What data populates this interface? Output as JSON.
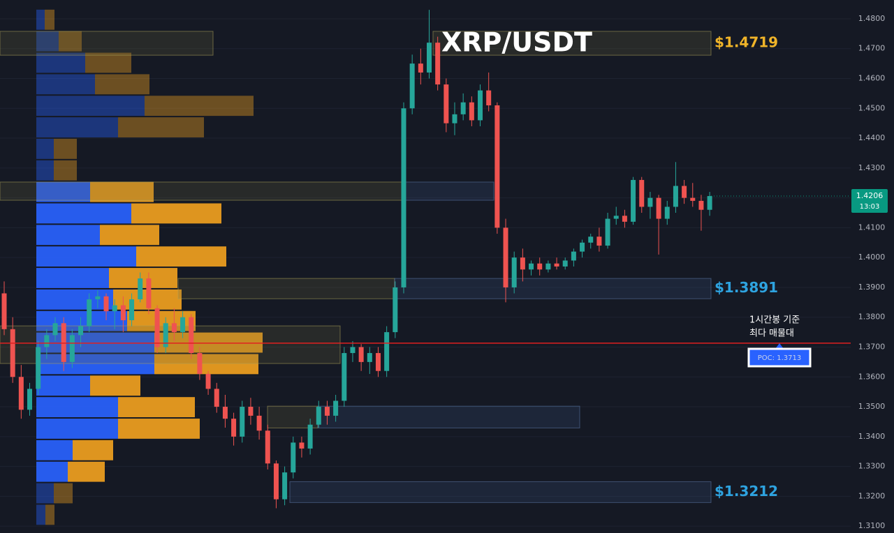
{
  "chart_data": {
    "type": "candlestick",
    "title": "XRP/USDT",
    "ylim": [
      1.3077,
      1.4863
    ],
    "yticks": [
      {
        "value": 1.48,
        "label": "1.4800"
      },
      {
        "value": 1.47,
        "label": "1.4700"
      },
      {
        "value": 1.46,
        "label": "1.4600"
      },
      {
        "value": 1.45,
        "label": "1.4500"
      },
      {
        "value": 1.44,
        "label": "1.4400"
      },
      {
        "value": 1.43,
        "label": "1.4300"
      },
      {
        "value": 1.42,
        "label": "1.4200"
      },
      {
        "value": 1.41,
        "label": "1.4100"
      },
      {
        "value": 1.4,
        "label": "1.4000"
      },
      {
        "value": 1.39,
        "label": "1.3900"
      },
      {
        "value": 1.38,
        "label": "1.3800"
      },
      {
        "value": 1.37,
        "label": "1.3700"
      },
      {
        "value": 1.36,
        "label": "1.3600"
      },
      {
        "value": 1.35,
        "label": "1.3500"
      },
      {
        "value": 1.34,
        "label": "1.3400"
      },
      {
        "value": 1.33,
        "label": "1.3300"
      },
      {
        "value": 1.32,
        "label": "1.3200"
      },
      {
        "value": 1.31,
        "label": "1.3100"
      }
    ],
    "grid": true,
    "up_color": "#26a69a",
    "down_color": "#ef5350",
    "candles": [
      [
        1.388,
        1.392,
        1.374,
        1.376
      ],
      [
        1.376,
        1.38,
        1.358,
        1.36
      ],
      [
        1.36,
        1.364,
        1.346,
        1.349
      ],
      [
        1.349,
        1.358,
        1.347,
        1.356
      ],
      [
        1.356,
        1.372,
        1.354,
        1.37
      ],
      [
        1.37,
        1.376,
        1.366,
        1.374
      ],
      [
        1.374,
        1.38,
        1.372,
        1.378
      ],
      [
        1.378,
        1.38,
        1.362,
        1.365
      ],
      [
        1.365,
        1.376,
        1.363,
        1.374
      ],
      [
        1.374,
        1.38,
        1.37,
        1.377
      ],
      [
        1.377,
        1.388,
        1.375,
        1.386
      ],
      [
        1.386,
        1.389,
        1.383,
        1.387
      ],
      [
        1.387,
        1.388,
        1.379,
        1.382
      ],
      [
        1.382,
        1.386,
        1.376,
        1.384
      ],
      [
        1.384,
        1.387,
        1.375,
        1.379
      ],
      [
        1.379,
        1.388,
        1.377,
        1.386
      ],
      [
        1.386,
        1.395,
        1.385,
        1.393
      ],
      [
        1.393,
        1.395,
        1.381,
        1.383
      ],
      [
        1.383,
        1.384,
        1.368,
        1.37
      ],
      [
        1.37,
        1.38,
        1.368,
        1.378
      ],
      [
        1.378,
        1.383,
        1.372,
        1.375
      ],
      [
        1.375,
        1.382,
        1.373,
        1.38
      ],
      [
        1.38,
        1.381,
        1.366,
        1.368
      ],
      [
        1.368,
        1.37,
        1.359,
        1.361
      ],
      [
        1.361,
        1.362,
        1.354,
        1.356
      ],
      [
        1.356,
        1.358,
        1.348,
        1.35
      ],
      [
        1.35,
        1.354,
        1.343,
        1.346
      ],
      [
        1.346,
        1.348,
        1.337,
        1.34
      ],
      [
        1.34,
        1.352,
        1.338,
        1.35
      ],
      [
        1.35,
        1.353,
        1.344,
        1.347
      ],
      [
        1.347,
        1.35,
        1.339,
        1.342
      ],
      [
        1.342,
        1.344,
        1.329,
        1.331
      ],
      [
        1.331,
        1.332,
        1.316,
        1.319
      ],
      [
        1.319,
        1.33,
        1.317,
        1.328
      ],
      [
        1.328,
        1.34,
        1.326,
        1.338
      ],
      [
        1.338,
        1.34,
        1.333,
        1.336
      ],
      [
        1.336,
        1.346,
        1.334,
        1.344
      ],
      [
        1.344,
        1.352,
        1.343,
        1.35
      ],
      [
        1.35,
        1.352,
        1.344,
        1.347
      ],
      [
        1.347,
        1.354,
        1.345,
        1.352
      ],
      [
        1.352,
        1.37,
        1.35,
        1.368
      ],
      [
        1.368,
        1.372,
        1.365,
        1.37
      ],
      [
        1.37,
        1.371,
        1.362,
        1.365
      ],
      [
        1.365,
        1.37,
        1.361,
        1.368
      ],
      [
        1.368,
        1.37,
        1.36,
        1.362
      ],
      [
        1.362,
        1.377,
        1.36,
        1.375
      ],
      [
        1.375,
        1.392,
        1.373,
        1.39
      ],
      [
        1.39,
        1.452,
        1.388,
        1.45
      ],
      [
        1.45,
        1.468,
        1.448,
        1.465
      ],
      [
        1.465,
        1.47,
        1.458,
        1.462
      ],
      [
        1.462,
        1.483,
        1.46,
        1.472
      ],
      [
        1.472,
        1.474,
        1.456,
        1.458
      ],
      [
        1.458,
        1.46,
        1.442,
        1.445
      ],
      [
        1.445,
        1.452,
        1.441,
        1.448
      ],
      [
        1.448,
        1.455,
        1.446,
        1.452
      ],
      [
        1.452,
        1.454,
        1.444,
        1.446
      ],
      [
        1.446,
        1.458,
        1.444,
        1.456
      ],
      [
        1.456,
        1.462,
        1.449,
        1.451
      ],
      [
        1.451,
        1.452,
        1.408,
        1.41
      ],
      [
        1.41,
        1.413,
        1.385,
        1.39
      ],
      [
        1.39,
        1.402,
        1.388,
        1.4
      ],
      [
        1.4,
        1.403,
        1.392,
        1.396
      ],
      [
        1.396,
        1.399,
        1.394,
        1.398
      ],
      [
        1.398,
        1.4,
        1.394,
        1.396
      ],
      [
        1.396,
        1.399,
        1.395,
        1.398
      ],
      [
        1.398,
        1.4,
        1.396,
        1.397
      ],
      [
        1.397,
        1.4,
        1.396,
        1.399
      ],
      [
        1.399,
        1.403,
        1.397,
        1.402
      ],
      [
        1.402,
        1.406,
        1.4,
        1.405
      ],
      [
        1.405,
        1.408,
        1.403,
        1.407
      ],
      [
        1.407,
        1.41,
        1.402,
        1.404
      ],
      [
        1.404,
        1.415,
        1.403,
        1.413
      ],
      [
        1.413,
        1.417,
        1.411,
        1.414
      ],
      [
        1.414,
        1.416,
        1.41,
        1.412
      ],
      [
        1.412,
        1.427,
        1.411,
        1.426
      ],
      [
        1.426,
        1.427,
        1.415,
        1.417
      ],
      [
        1.417,
        1.422,
        1.413,
        1.42
      ],
      [
        1.42,
        1.421,
        1.401,
        1.413
      ],
      [
        1.413,
        1.419,
        1.411,
        1.417
      ],
      [
        1.417,
        1.432,
        1.415,
        1.424
      ],
      [
        1.424,
        1.426,
        1.418,
        1.42
      ],
      [
        1.42,
        1.425,
        1.417,
        1.419
      ],
      [
        1.419,
        1.421,
        1.409,
        1.416
      ],
      [
        1.416,
        1.422,
        1.414,
        1.4206
      ]
    ],
    "volume_profile": {
      "range": [
        1.4833,
        1.3102
      ],
      "value_area": [
        1.4253,
        1.323
      ],
      "buy_color": "#2962ff",
      "sell_color": "#f0a020",
      "buy": [
        12,
        32,
        70,
        84,
        155,
        117,
        25,
        25,
        77,
        136,
        91,
        143,
        104,
        110,
        130,
        169,
        169,
        77,
        117,
        117,
        52,
        45,
        25,
        13
      ],
      "sell": [
        14,
        33,
        66,
        78,
        156,
        123,
        33,
        33,
        91,
        129,
        85,
        129,
        98,
        98,
        98,
        155,
        149,
        72,
        110,
        117,
        58,
        53,
        27,
        13
      ]
    },
    "zones": [
      {
        "top": 1.4758,
        "bottom": 1.4678,
        "price": {
          "value": 1.4719,
          "label": "$1.4719"
        },
        "color": "#f0b429"
      },
      {
        "top": 1.4253,
        "bottom": 1.4192
      },
      {
        "top": 1.393,
        "bottom": 1.3862,
        "price": {
          "value": 1.3891,
          "label": "$1.3891"
        },
        "color": "#2ea3e0"
      },
      {
        "top": 1.3771,
        "bottom": 1.3645
      },
      {
        "top": 1.3502,
        "bottom": 1.3429
      },
      {
        "top": 1.3249,
        "bottom": 1.3179,
        "price": {
          "value": 1.3212,
          "label": "$1.3212"
        },
        "color": "#2ea3e0"
      }
    ],
    "poc": {
      "value": 1.3713,
      "label": "POC: 1.3713",
      "color": "#e02020",
      "note": [
        "1시간봉 기준",
        "최다 매물대"
      ]
    },
    "last_price": {
      "value": 1.4206,
      "label": "1.4206",
      "countdown": "13:03",
      "color": "#089981"
    }
  }
}
